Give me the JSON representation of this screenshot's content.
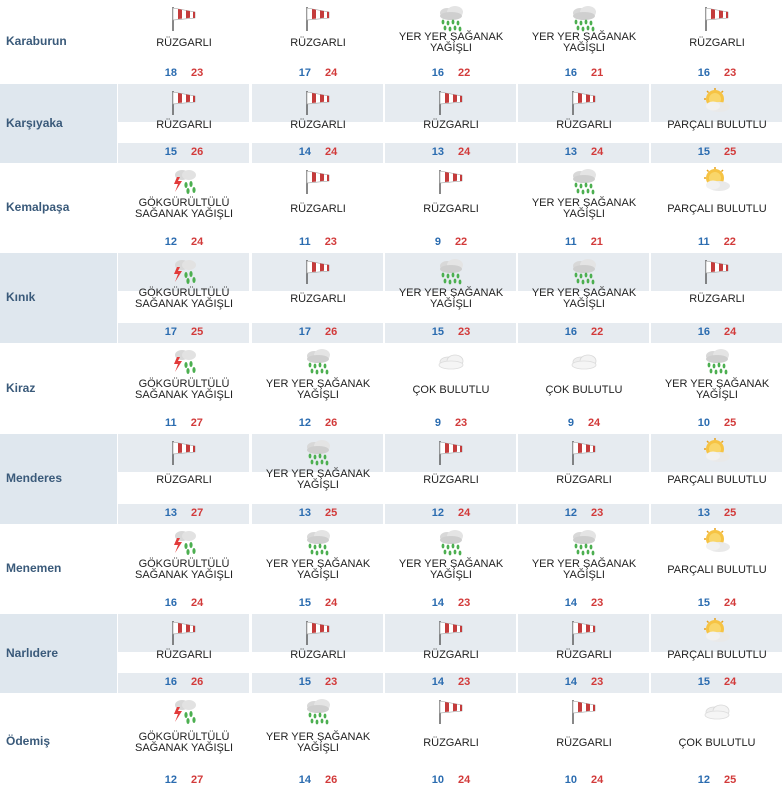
{
  "colors": {
    "min": "#2b6cb0",
    "max": "#d23a3a",
    "row_shade": "#e6ebf0",
    "city_shade": "#dfe7ee"
  },
  "rows": [
    {
      "city": "Karaburun",
      "days": [
        {
          "icon": "windsock-icon",
          "desc": "RÜZGARLI",
          "min": "18",
          "max": "23"
        },
        {
          "icon": "windsock-icon",
          "desc": "RÜZGARLI",
          "min": "17",
          "max": "24"
        },
        {
          "icon": "rain-cloud-icon",
          "desc": "YER YER ŞAĞANAK YAĞIŞLI",
          "min": "16",
          "max": "22"
        },
        {
          "icon": "rain-cloud-icon",
          "desc": "YER YER ŞAĞANAK YAĞIŞLI",
          "min": "16",
          "max": "21"
        },
        {
          "icon": "windsock-icon",
          "desc": "RÜZGARLI",
          "min": "16",
          "max": "23"
        }
      ]
    },
    {
      "city": "Karşıyaka",
      "days": [
        {
          "icon": "windsock-icon",
          "desc": "RÜZGARLI",
          "min": "15",
          "max": "26"
        },
        {
          "icon": "windsock-icon",
          "desc": "RÜZGARLI",
          "min": "14",
          "max": "24"
        },
        {
          "icon": "windsock-icon",
          "desc": "RÜZGARLI",
          "min": "13",
          "max": "24"
        },
        {
          "icon": "windsock-icon",
          "desc": "RÜZGARLI",
          "min": "13",
          "max": "24"
        },
        {
          "icon": "sun-cloud-icon",
          "desc": "PARÇALI BULUTLU",
          "min": "15",
          "max": "25"
        }
      ]
    },
    {
      "city": "Kemalpaşa",
      "days": [
        {
          "icon": "thunderstorm-icon",
          "desc": "GÖKGÜRÜLTÜLÜ SAĞANAK YAĞIŞLI",
          "min": "12",
          "max": "24"
        },
        {
          "icon": "windsock-icon",
          "desc": "RÜZGARLI",
          "min": "11",
          "max": "23"
        },
        {
          "icon": "windsock-icon",
          "desc": "RÜZGARLI",
          "min": "9",
          "max": "22"
        },
        {
          "icon": "rain-cloud-icon",
          "desc": "YER YER ŞAĞANAK YAĞIŞLI",
          "min": "11",
          "max": "21"
        },
        {
          "icon": "sun-cloud-icon",
          "desc": "PARÇALI BULUTLU",
          "min": "11",
          "max": "22"
        }
      ]
    },
    {
      "city": "Kınık",
      "days": [
        {
          "icon": "thunderstorm-icon",
          "desc": "GÖKGÜRÜLTÜLÜ SAĞANAK YAĞIŞLI",
          "min": "17",
          "max": "25"
        },
        {
          "icon": "windsock-icon",
          "desc": "RÜZGARLI",
          "min": "17",
          "max": "26"
        },
        {
          "icon": "rain-cloud-icon",
          "desc": "YER YER ŞAĞANAK YAĞIŞLI",
          "min": "15",
          "max": "23"
        },
        {
          "icon": "rain-cloud-icon",
          "desc": "YER YER ŞAĞANAK YAĞIŞLI",
          "min": "16",
          "max": "22"
        },
        {
          "icon": "windsock-icon",
          "desc": "RÜZGARLI",
          "min": "16",
          "max": "24"
        }
      ]
    },
    {
      "city": "Kiraz",
      "days": [
        {
          "icon": "thunderstorm-icon",
          "desc": "GÖKGÜRÜLTÜLÜ SAĞANAK YAĞIŞLI",
          "min": "11",
          "max": "27"
        },
        {
          "icon": "rain-cloud-icon",
          "desc": "YER YER ŞAĞANAK YAĞIŞLI",
          "min": "12",
          "max": "26"
        },
        {
          "icon": "cloud-icon",
          "desc": "ÇOK BULUTLU",
          "min": "9",
          "max": "23"
        },
        {
          "icon": "cloud-icon",
          "desc": "ÇOK BULUTLU",
          "min": "9",
          "max": "24"
        },
        {
          "icon": "rain-cloud-icon",
          "desc": "YER YER ŞAĞANAK YAĞIŞLI",
          "min": "10",
          "max": "25"
        }
      ]
    },
    {
      "city": "Menderes",
      "days": [
        {
          "icon": "windsock-icon",
          "desc": "RÜZGARLI",
          "min": "13",
          "max": "27"
        },
        {
          "icon": "rain-cloud-icon",
          "desc": "YER YER ŞAĞANAK YAĞIŞLI",
          "min": "13",
          "max": "25"
        },
        {
          "icon": "windsock-icon",
          "desc": "RÜZGARLI",
          "min": "12",
          "max": "24"
        },
        {
          "icon": "windsock-icon",
          "desc": "RÜZGARLI",
          "min": "12",
          "max": "23"
        },
        {
          "icon": "sun-cloud-icon",
          "desc": "PARÇALI BULUTLU",
          "min": "13",
          "max": "25"
        }
      ]
    },
    {
      "city": "Menemen",
      "days": [
        {
          "icon": "thunderstorm-icon",
          "desc": "GÖKGÜRÜLTÜLÜ SAĞANAK YAĞIŞLI",
          "min": "16",
          "max": "24"
        },
        {
          "icon": "rain-cloud-icon",
          "desc": "YER YER ŞAĞANAK YAĞIŞLI",
          "min": "15",
          "max": "24"
        },
        {
          "icon": "rain-cloud-icon",
          "desc": "YER YER ŞAĞANAK YAĞIŞLI",
          "min": "14",
          "max": "23"
        },
        {
          "icon": "rain-cloud-icon",
          "desc": "YER YER ŞAĞANAK YAĞIŞLI",
          "min": "14",
          "max": "23"
        },
        {
          "icon": "sun-cloud-icon",
          "desc": "PARÇALI BULUTLU",
          "min": "15",
          "max": "24"
        }
      ]
    },
    {
      "city": "Narlıdere",
      "days": [
        {
          "icon": "windsock-icon",
          "desc": "RÜZGARLI",
          "min": "16",
          "max": "26"
        },
        {
          "icon": "windsock-icon",
          "desc": "RÜZGARLI",
          "min": "15",
          "max": "23"
        },
        {
          "icon": "windsock-icon",
          "desc": "RÜZGARLI",
          "min": "14",
          "max": "23"
        },
        {
          "icon": "windsock-icon",
          "desc": "RÜZGARLI",
          "min": "14",
          "max": "23"
        },
        {
          "icon": "sun-cloud-icon",
          "desc": "PARÇALI BULUTLU",
          "min": "15",
          "max": "24"
        }
      ]
    },
    {
      "city": "Ödemiş",
      "days": [
        {
          "icon": "thunderstorm-icon",
          "desc": "GÖKGÜRÜLTÜLÜ SAĞANAK YAĞIŞLI",
          "min": "12",
          "max": "27"
        },
        {
          "icon": "rain-cloud-icon",
          "desc": "YER YER ŞAĞANAK YAĞIŞLI",
          "min": "14",
          "max": "26"
        },
        {
          "icon": "windsock-icon",
          "desc": "RÜZGARLI",
          "min": "10",
          "max": "24"
        },
        {
          "icon": "windsock-icon",
          "desc": "RÜZGARLI",
          "min": "10",
          "max": "24"
        },
        {
          "icon": "cloud-icon",
          "desc": "ÇOK BULUTLU",
          "min": "12",
          "max": "25"
        }
      ]
    }
  ]
}
